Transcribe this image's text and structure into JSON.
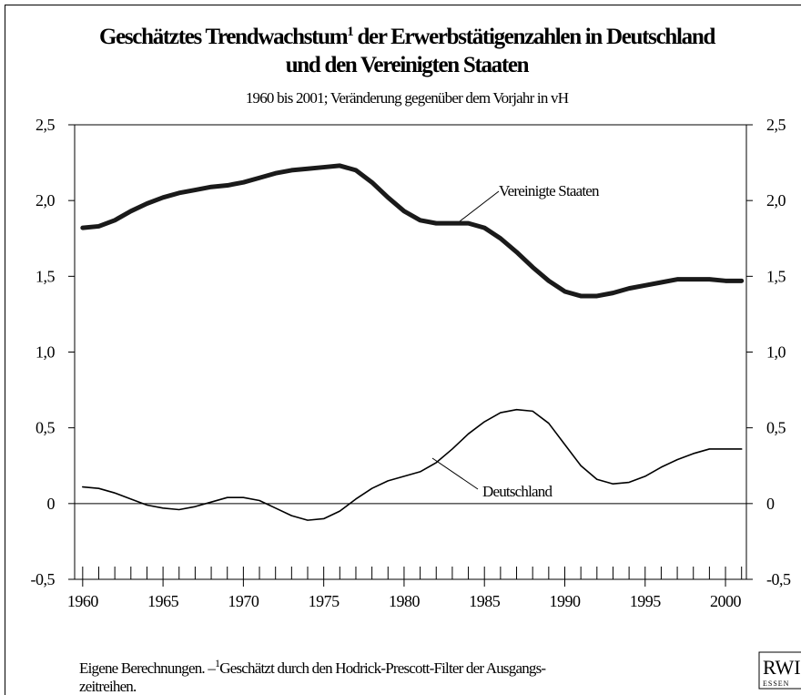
{
  "chart_data": {
    "type": "line",
    "title_part1": "Geschätztes Trendwachstum",
    "title_superscript": "1",
    "title_part2": " der Erwerbstätigenzahlen in Deutschland",
    "title_line2": "und den Vereinigten Staaten",
    "subtitle": "1960 bis 2001; Veränderung gegenüber dem Vorjahr in vH",
    "x": [
      1960,
      1961,
      1962,
      1963,
      1964,
      1965,
      1966,
      1967,
      1968,
      1969,
      1970,
      1971,
      1972,
      1973,
      1974,
      1975,
      1976,
      1977,
      1978,
      1979,
      1980,
      1981,
      1982,
      1983,
      1984,
      1985,
      1986,
      1987,
      1988,
      1989,
      1990,
      1991,
      1992,
      1993,
      1994,
      1995,
      1996,
      1997,
      1998,
      1999,
      2000,
      2001
    ],
    "series": [
      {
        "name": "Vereinigte Staaten",
        "color": "#1a1a1a",
        "values": [
          1.82,
          1.83,
          1.87,
          1.93,
          1.98,
          2.02,
          2.05,
          2.07,
          2.09,
          2.1,
          2.12,
          2.15,
          2.18,
          2.2,
          2.21,
          2.22,
          2.23,
          2.2,
          2.12,
          2.02,
          1.93,
          1.87,
          1.85,
          1.85,
          1.85,
          1.82,
          1.75,
          1.66,
          1.56,
          1.47,
          1.4,
          1.37,
          1.37,
          1.39,
          1.42,
          1.44,
          1.46,
          1.48,
          1.48,
          1.48,
          1.47,
          1.47
        ]
      },
      {
        "name": "Deutschland",
        "color": "#000000",
        "values": [
          0.11,
          0.1,
          0.07,
          0.03,
          -0.01,
          -0.03,
          -0.04,
          -0.02,
          0.01,
          0.04,
          0.04,
          0.02,
          -0.03,
          -0.08,
          -0.11,
          -0.1,
          -0.05,
          0.03,
          0.1,
          0.15,
          0.18,
          0.21,
          0.27,
          0.36,
          0.46,
          0.54,
          0.6,
          0.62,
          0.61,
          0.53,
          0.39,
          0.25,
          0.16,
          0.13,
          0.14,
          0.18,
          0.24,
          0.29,
          0.33,
          0.36,
          0.36,
          0.36
        ]
      }
    ],
    "xlim": [
      1959.5,
      2001.3
    ],
    "xticks": [
      1960,
      1965,
      1970,
      1975,
      1980,
      1985,
      1990,
      1995,
      2000
    ],
    "ylim": [
      -0.5,
      2.5
    ],
    "yticks": [
      {
        "value": -0.5,
        "label": "-0,5"
      },
      0,
      {
        "value": 0.5,
        "label": "0,5"
      },
      {
        "value": 1.0,
        "label": "1,0"
      },
      {
        "value": 1.5,
        "label": "1,5"
      },
      {
        "value": 2.0,
        "label": "2,0"
      },
      {
        "value": 2.5,
        "label": "2,5"
      }
    ],
    "footnote_part1": "Eigene Berechnungen. –",
    "footnote_superscript": "1",
    "footnote_part2": "Geschätzt durch den Hodrick-Prescott-Filter der Ausgangs-",
    "footnote_line2": "zeitreihen.",
    "logo": "RWI",
    "logo_sub": "ESSEN"
  }
}
